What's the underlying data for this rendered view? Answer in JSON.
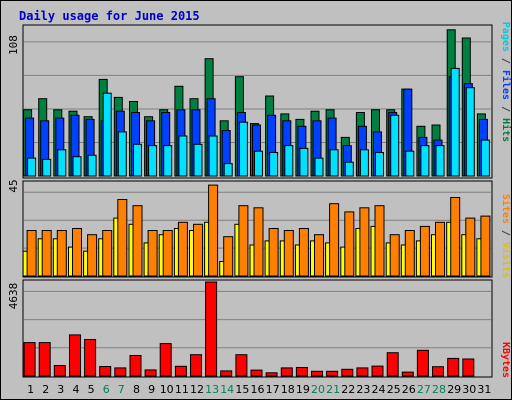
{
  "title": "Daily usage for June 2015",
  "colors": {
    "title": "#0000cc",
    "hits": "#008040",
    "files": "#0040ff",
    "pages": "#00e0ff",
    "visits": "#ffff00",
    "sites": "#ff8000",
    "kbytes": "#ff0000",
    "weekend_day_label": "#00805c",
    "weekday_label": "#000000",
    "background": "#c0c0c0",
    "gridline": "#808080"
  },
  "day_labels": [
    "1",
    "2",
    "3",
    "4",
    "5",
    "6",
    "7",
    "8",
    "9",
    "10",
    "11",
    "12",
    "13",
    "14",
    "15",
    "16",
    "17",
    "18",
    "19",
    "20",
    "21",
    "22",
    "23",
    "24",
    "25",
    "26",
    "27",
    "28",
    "29",
    "30",
    "31"
  ],
  "weekend_days": [
    6,
    7,
    13,
    14,
    20,
    21,
    27,
    28
  ],
  "chart_data": [
    {
      "type": "bar",
      "panel": "hits-files-pages",
      "axis_max_label": "108",
      "ylim": [
        0,
        108
      ],
      "legend_labels": [
        "Pages",
        "Files",
        "Hits"
      ],
      "series": [
        {
          "name": "Hits",
          "values": [
            48,
            56,
            48,
            47,
            43,
            70,
            57,
            54,
            43,
            48,
            65,
            56,
            85,
            40,
            72,
            38,
            58,
            45,
            41,
            47,
            48,
            28,
            46,
            48,
            48,
            63,
            36,
            37,
            106,
            100,
            45
          ]
        },
        {
          "name": "Files",
          "values": [
            42,
            40,
            42,
            44,
            41,
            40,
            47,
            46,
            40,
            46,
            48,
            48,
            56,
            33,
            46,
            37,
            44,
            40,
            36,
            40,
            42,
            22,
            36,
            32,
            46,
            63,
            28,
            26,
            72,
            67,
            41
          ]
        },
        {
          "name": "Pages",
          "values": [
            13,
            12,
            19,
            14,
            15,
            60,
            32,
            23,
            22,
            22,
            29,
            23,
            29,
            9,
            39,
            18,
            17,
            22,
            20,
            13,
            19,
            10,
            19,
            17,
            44,
            18,
            22,
            22,
            78,
            64,
            26
          ]
        }
      ]
    },
    {
      "type": "bar",
      "panel": "visits-sites",
      "axis_max_label": "45",
      "ylim": [
        0,
        45
      ],
      "legend_labels": [
        "Sites",
        "Visits"
      ],
      "series": [
        {
          "name": "Visits",
          "values": [
            12,
            18,
            18,
            14,
            12,
            18,
            28,
            25,
            16,
            20,
            23,
            22,
            26,
            7,
            25,
            15,
            17,
            17,
            15,
            17,
            16,
            14,
            23,
            24,
            16,
            15,
            17,
            20,
            26,
            20,
            18
          ]
        },
        {
          "name": "Sites",
          "values": [
            22,
            22,
            22,
            23,
            20,
            22,
            37,
            34,
            22,
            22,
            26,
            25,
            44,
            19,
            34,
            33,
            23,
            22,
            23,
            20,
            35,
            31,
            33,
            34,
            20,
            22,
            24,
            26,
            38,
            28,
            29
          ]
        }
      ]
    },
    {
      "type": "bar",
      "panel": "kbytes",
      "axis_max_label": "4638",
      "ylim": [
        0,
        4638
      ],
      "legend_labels": [
        "KBytes"
      ],
      "series": [
        {
          "name": "KBytes",
          "values": [
            1650,
            1650,
            520,
            2030,
            1800,
            470,
            400,
            1010,
            300,
            1600,
            480,
            1050,
            4638,
            250,
            1050,
            290,
            160,
            400,
            420,
            230,
            230,
            330,
            400,
            490,
            1150,
            190,
            1270,
            460,
            870,
            840,
            0
          ]
        }
      ]
    }
  ]
}
